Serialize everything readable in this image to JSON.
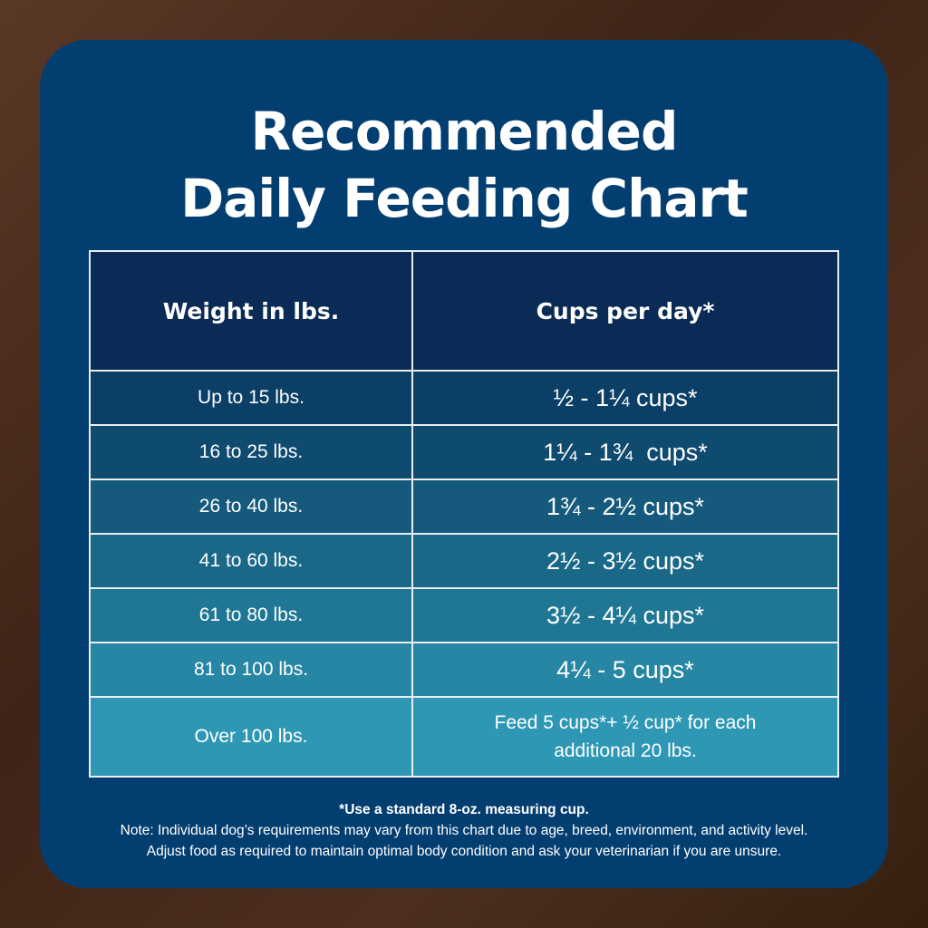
{
  "title": {
    "line1": "Recommended",
    "line2": "Daily Feeding Chart"
  },
  "table": {
    "headers": [
      "Weight in lbs.",
      "Cups per day*"
    ],
    "rows": [
      {
        "weight": "Up to 15 lbs.",
        "cups": "½ - 1¼ cups*",
        "color": "#0b3f66"
      },
      {
        "weight": "16 to 25 lbs.",
        "cups": "1¼ - 1¾  cups*",
        "color": "#0f4a6f"
      },
      {
        "weight": "26 to 40 lbs.",
        "cups": "1¾ - 2½ cups*",
        "color": "#155a7c"
      },
      {
        "weight": "41 to 60 lbs.",
        "cups": "2½ - 3½ cups*",
        "color": "#1a6888"
      },
      {
        "weight": "61 to 80 lbs.",
        "cups": "3½ - 4¼ cups*",
        "color": "#207795"
      },
      {
        "weight": "81 to 100 lbs.",
        "cups": "4¼ - 5 cups*",
        "color": "#2686a3"
      },
      {
        "weight": "Over 100 lbs.",
        "cups": "Feed 5 cups*+ ½ cup* for each",
        "cups2": "additional 20 lbs.",
        "color": "#2e98b4"
      }
    ]
  },
  "notes": {
    "footnote": "*Use a standard 8-oz. measuring cup.",
    "line1": "Note: Individual dog’s requirements may vary from this chart due to age, breed, environment, and activity level.",
    "line2": "Adjust food as required to maintain optimal body condition and ask your veterinarian if you are unsure."
  }
}
